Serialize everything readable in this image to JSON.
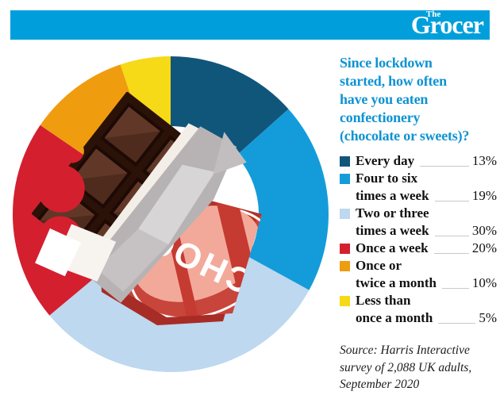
{
  "header": {
    "logo_the": "The",
    "logo_grocer": "Grocer",
    "bar_color": "#009fdb"
  },
  "chart_data": {
    "type": "pie",
    "subtype": "donut",
    "title": "Since lockdown started, how often have you eaten confectionery (chocolate or sweets)?",
    "title_lines": [
      "Since lockdown",
      "started, how often",
      "have you eaten",
      "confectionery",
      "(chocolate or sweets)?"
    ],
    "title_color": "#0e93d2",
    "unit": "%",
    "layout": {
      "start_angle_deg": 0,
      "clockwise": true,
      "inner_radius_ratio": 0.56,
      "legend_position": "right"
    },
    "segments": [
      {
        "label": "Every day",
        "label_lines": [
          "Every day"
        ],
        "value": 13,
        "display": "13%",
        "color": "#10567b"
      },
      {
        "label": "Four to six times a week",
        "label_lines": [
          "Four to six",
          "times a week"
        ],
        "value": 19,
        "display": "19%",
        "color": "#149cda"
      },
      {
        "label": "Two or three times a week",
        "label_lines": [
          "Two or three",
          "times a week"
        ],
        "value": 30,
        "display": "30%",
        "color": "#bdd8ef"
      },
      {
        "label": "Once a week",
        "label_lines": [
          "Once a week"
        ],
        "value": 20,
        "display": "20%",
        "color": "#d41f2f"
      },
      {
        "label": "Once or twice a month",
        "label_lines": [
          "Once or",
          "twice a month"
        ],
        "value": 10,
        "display": "10%",
        "color": "#ef9c0f"
      },
      {
        "label": "Less than once a month",
        "label_lines": [
          "Less than",
          "once a month"
        ],
        "value": 5,
        "display": "5%",
        "color": "#f6d917"
      }
    ],
    "source_lines": [
      "Source: Harris Interactive",
      "survey of 2,088 UK adults,",
      "September 2020"
    ]
  },
  "illustration": {
    "name": "chocolate-bar-with-wrapper",
    "wrapper_text": "CHOC"
  }
}
